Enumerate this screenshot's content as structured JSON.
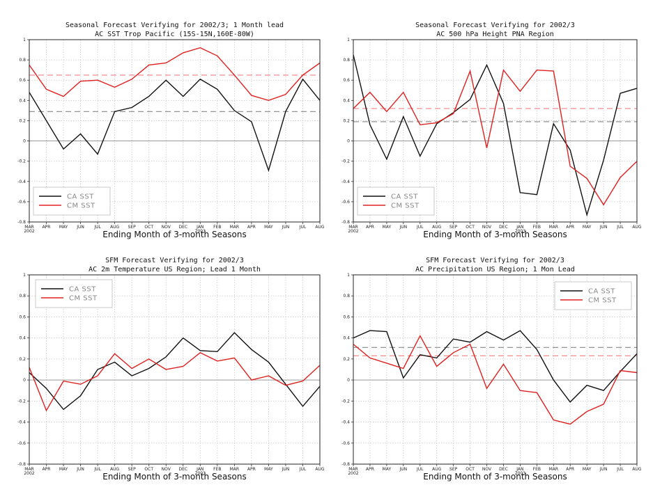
{
  "colors": {
    "ca": "#111111",
    "cm": "#e02020",
    "ca_ref": "#888888",
    "cm_ref": "#f08080",
    "grid": "#c8c8c8",
    "zero": "#999999"
  },
  "chart_data": [
    {
      "type": "line",
      "title": [
        "Seasonal Forecast Verifying for 2002/3; 1 Month lead",
        "AC SST Trop Pacific (15S-15N,160E-80W)"
      ],
      "xlabel": "Ending Month of 3-month Seasons",
      "categories": [
        "MAR",
        "APR",
        "MAY",
        "JUN",
        "JUL",
        "AUG",
        "SEP",
        "OCT",
        "NOV",
        "DEC",
        "JAN",
        "FEB",
        "MAR",
        "APR",
        "MAY",
        "JUN",
        "JUL",
        "AUG"
      ],
      "year_labels": [
        {
          "index": 0,
          "text": "2002"
        },
        {
          "index": 10,
          "text": "2003"
        }
      ],
      "ylim": [
        -0.8,
        1
      ],
      "yticks": [
        "-0.8",
        "-0.6",
        "-0.4",
        "-0.2",
        "0",
        "0.2",
        "0.4",
        "0.6",
        "0.8",
        "1"
      ],
      "series": [
        {
          "name": "CA SST",
          "values": [
            0.48,
            0.2,
            -0.08,
            0.07,
            -0.13,
            0.29,
            0.33,
            0.44,
            0.6,
            0.44,
            0.61,
            0.51,
            0.3,
            0.19,
            -0.29,
            0.29,
            0.61,
            0.4
          ],
          "mean": 0.29
        },
        {
          "name": "CM SST",
          "values": [
            0.75,
            0.51,
            0.44,
            0.59,
            0.6,
            0.53,
            0.61,
            0.75,
            0.77,
            0.87,
            0.92,
            0.84,
            0.65,
            0.45,
            0.4,
            0.46,
            0.65,
            0.77
          ],
          "mean": 0.65
        }
      ],
      "legend": {
        "position": "bottom-left",
        "items": [
          "CA SST",
          "CM SST"
        ]
      }
    },
    {
      "type": "line",
      "title": [
        "Seasonal Forecast Verifying for 2002/3",
        "AC 500 hPa Height PNA Region"
      ],
      "xlabel": "Ending Month of 3-month Seasons",
      "categories": [
        "MAR",
        "APR",
        "MAY",
        "JUN",
        "JUL",
        "AUG",
        "SEP",
        "OCT",
        "NOV",
        "DEC",
        "JAN",
        "FEB",
        "MAR",
        "APR",
        "MAY",
        "JUN",
        "JUL",
        "AUG"
      ],
      "year_labels": [
        {
          "index": 0,
          "text": "2002"
        },
        {
          "index": 10,
          "text": "2003"
        }
      ],
      "ylim": [
        -0.8,
        1
      ],
      "yticks": [
        "-0.8",
        "-0.6",
        "-0.4",
        "-0.2",
        "0",
        "0.2",
        "0.4",
        "0.6",
        "0.8",
        "1"
      ],
      "series": [
        {
          "name": "CA SST",
          "values": [
            0.85,
            0.16,
            -0.18,
            0.24,
            -0.15,
            0.17,
            0.28,
            0.41,
            0.75,
            0.37,
            -0.51,
            -0.53,
            0.17,
            -0.09,
            -0.73,
            -0.19,
            0.47,
            0.52
          ],
          "mean": 0.19
        },
        {
          "name": "CM SST",
          "values": [
            0.32,
            0.48,
            0.29,
            0.48,
            0.16,
            0.18,
            0.27,
            0.69,
            -0.07,
            0.7,
            0.49,
            0.7,
            0.69,
            -0.25,
            -0.37,
            -0.63,
            -0.36,
            -0.2
          ],
          "mean": 0.32
        }
      ],
      "legend": {
        "position": "bottom-left",
        "items": [
          "CA SST",
          "CM SST"
        ]
      }
    },
    {
      "type": "line",
      "title": [
        "SFM Forecast Verifying for 2002/3",
        "AC 2m Temperature US Region; Lead 1 Month"
      ],
      "xlabel": "Ending Month of 3-month Seasons",
      "categories": [
        "MAR",
        "APR",
        "MAY",
        "JUN",
        "JUL",
        "AUG",
        "SEP",
        "OCT",
        "NOV",
        "DEC",
        "JAN",
        "FEB",
        "MAR",
        "APR",
        "MAY",
        "JUN",
        "JUL",
        "AUG"
      ],
      "year_labels": [
        {
          "index": 0,
          "text": "2002"
        },
        {
          "index": 10,
          "text": "2003"
        }
      ],
      "ylim": [
        -0.8,
        1
      ],
      "yticks": [
        "-0.8",
        "-0.6",
        "-0.4",
        "-0.2",
        "0",
        "0.2",
        "0.4",
        "0.6",
        "0.8",
        "1"
      ],
      "series": [
        {
          "name": "CA SST",
          "values": [
            0.07,
            -0.08,
            -0.28,
            -0.15,
            0.1,
            0.17,
            0.04,
            0.11,
            0.22,
            0.4,
            0.28,
            0.27,
            0.45,
            0.29,
            0.17,
            -0.04,
            -0.25,
            -0.06
          ]
        },
        {
          "name": "CM SST",
          "values": [
            0.12,
            -0.29,
            -0.01,
            -0.04,
            0.04,
            0.25,
            0.11,
            0.2,
            0.1,
            0.13,
            0.26,
            0.18,
            0.21,
            0.0,
            0.04,
            -0.05,
            -0.01,
            0.14
          ]
        }
      ],
      "legend": {
        "position": "top-left",
        "items": [
          "CA SST",
          "CM SST"
        ]
      }
    },
    {
      "type": "line",
      "title": [
        "SFM Forecast Verifying for 2002/3",
        "AC Precipitation US Region; 1 Mon Lead"
      ],
      "xlabel": "Ending Month of 3-month Seasons",
      "categories": [
        "MAR",
        "APR",
        "MAY",
        "JUN",
        "JUL",
        "AUG",
        "SEP",
        "OCT",
        "NOV",
        "DEC",
        "JAN",
        "FEB",
        "MAR",
        "APR",
        "MAY",
        "JUN",
        "JUL",
        "AUG"
      ],
      "year_labels": [
        {
          "index": 0,
          "text": "2002"
        },
        {
          "index": 10,
          "text": "2003"
        }
      ],
      "ylim": [
        -0.8,
        1
      ],
      "yticks": [
        "-0.8",
        "-0.6",
        "-0.4",
        "-0.2",
        "0",
        "0.2",
        "0.4",
        "0.6",
        "0.8",
        "1"
      ],
      "series": [
        {
          "name": "CA SST",
          "values": [
            0.4,
            0.47,
            0.46,
            0.02,
            0.24,
            0.21,
            0.39,
            0.36,
            0.46,
            0.38,
            0.47,
            0.29,
            0.0,
            -0.21,
            -0.05,
            -0.1,
            0.08,
            0.25
          ],
          "mean": 0.31
        },
        {
          "name": "CM SST",
          "values": [
            0.34,
            0.21,
            0.16,
            0.11,
            0.42,
            0.13,
            0.26,
            0.34,
            -0.08,
            0.15,
            -0.1,
            -0.12,
            -0.38,
            -0.42,
            -0.3,
            -0.23,
            0.09,
            0.07
          ],
          "mean": 0.23
        }
      ],
      "legend": {
        "position": "top-right",
        "items": [
          "CA SST",
          "CM SST"
        ]
      }
    }
  ]
}
